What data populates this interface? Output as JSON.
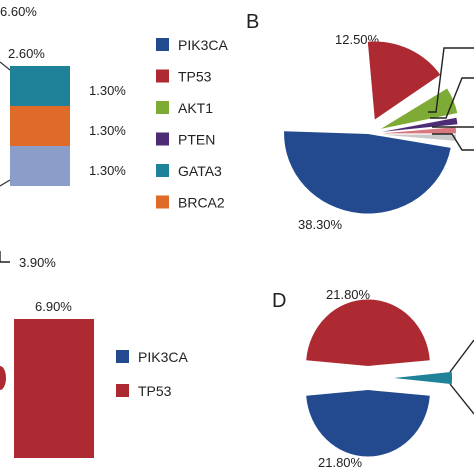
{
  "chart_data": [
    {
      "type": "bar",
      "panel": "",
      "stacked": true,
      "legend_placement": "right",
      "categories": [
        ""
      ],
      "series": [
        {
          "name": "GATA3",
          "color": "#1f8299",
          "values": [
            2.6
          ],
          "label": "2.60%"
        },
        {
          "name": "BRCA2",
          "color": "#e06a27",
          "values": [
            1.3
          ],
          "label": "1.30%"
        },
        {
          "name": "",
          "color": "#8b9ec9",
          "values": [
            1.3
          ],
          "label": "1.30%"
        }
      ],
      "segment_side_labels": [
        "1.30%",
        "1.30%",
        "1.30%"
      ],
      "top_label": "6.60%",
      "legend": [
        {
          "name": "PIK3CA",
          "color": "#234a8f"
        },
        {
          "name": "TP53",
          "color": "#ad2a33"
        },
        {
          "name": "AKT1",
          "color": "#7dab35"
        },
        {
          "name": "PTEN",
          "color": "#4e2c75"
        },
        {
          "name": "GATA3",
          "color": "#1f8299"
        },
        {
          "name": "BRCA2",
          "color": "#e06a27"
        }
      ]
    },
    {
      "type": "pie",
      "panel": "B",
      "slices": [
        {
          "name": "PIK3CA",
          "color": "#234a8f",
          "label": "38.30%"
        },
        {
          "name": "TP53",
          "color": "#ad2a33",
          "label": "12.50%"
        },
        {
          "name": "AKT1",
          "color": "#7dab35",
          "label": ""
        },
        {
          "name": "PTEN",
          "color": "#4e2c75",
          "label": ""
        },
        {
          "name": "",
          "color": "#d9797f",
          "label": ""
        },
        {
          "name": "",
          "color": "#c9c9c9",
          "label": ""
        }
      ]
    },
    {
      "type": "bar",
      "panel": "",
      "legend_placement": "right",
      "categories": [
        ""
      ],
      "series": [
        {
          "name": "TP53",
          "color": "#ad2a33",
          "values": [
            6.9
          ],
          "label": "6.90%"
        }
      ],
      "top_label": "3.90%",
      "legend": [
        {
          "name": "PIK3CA",
          "color": "#234a8f"
        },
        {
          "name": "TP53",
          "color": "#ad2a33"
        }
      ]
    },
    {
      "type": "pie",
      "panel": "D",
      "slices": [
        {
          "name": "TP53",
          "color": "#ad2a33",
          "label": "21.80%"
        },
        {
          "name": "PIK3CA",
          "color": "#234a8f",
          "label": "21.80%"
        },
        {
          "name": "",
          "color": "#1f8299",
          "label": ""
        }
      ]
    }
  ]
}
